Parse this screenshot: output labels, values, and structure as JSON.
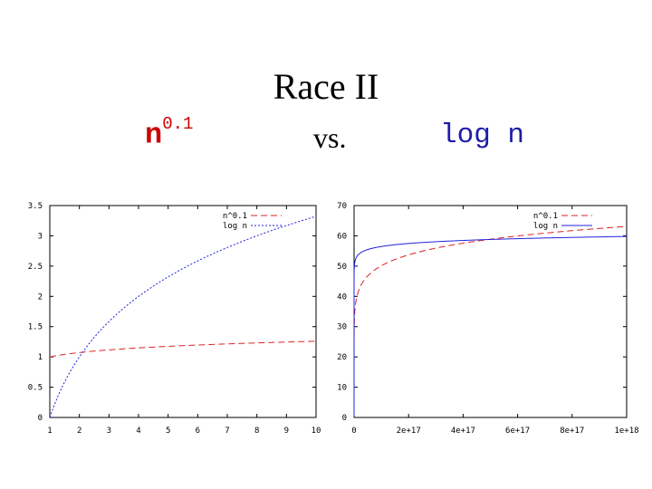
{
  "header": {
    "title": "Race II",
    "left_base": "n",
    "left_exponent": "0.1",
    "vs": "vs.",
    "right_label": "log n"
  },
  "colors": {
    "red_series": "#dd2222",
    "blue_series": "#2222dd"
  },
  "chart_data": [
    {
      "type": "line",
      "title": "",
      "xlabel": "",
      "ylabel": "",
      "xlim": [
        1,
        10
      ],
      "ylim": [
        0,
        3.5
      ],
      "x_ticks": [
        1,
        2,
        3,
        4,
        5,
        6,
        7,
        8,
        9,
        10
      ],
      "x_tick_labels": [
        "1",
        "2",
        "3",
        "4",
        "5",
        "6",
        "7",
        "8",
        "9",
        "10"
      ],
      "y_ticks": [
        0,
        0.5,
        1,
        1.5,
        2,
        2.5,
        3,
        3.5
      ],
      "y_tick_labels": [
        "0",
        "0.5",
        "1",
        "1.5",
        "2",
        "2.5",
        "3",
        "3.5"
      ],
      "legend_placement": "top-right",
      "series": [
        {
          "name": "n^0.1",
          "function": "power",
          "exponent": 0.1,
          "color": "red",
          "dash": "dashed"
        },
        {
          "name": "log n",
          "function": "log2",
          "color": "blue",
          "dash": "dotted"
        }
      ]
    },
    {
      "type": "line",
      "title": "",
      "xlabel": "",
      "ylabel": "",
      "xlim": [
        0,
        1e+18
      ],
      "ylim": [
        0,
        70
      ],
      "x_ticks": [
        0,
        2e+17,
        4e+17,
        6e+17,
        8e+17,
        1e+18
      ],
      "x_tick_labels": [
        "0",
        "2e+17",
        "4e+17",
        "6e+17",
        "8e+17",
        "1e+18"
      ],
      "y_ticks": [
        0,
        10,
        20,
        30,
        40,
        50,
        60,
        70
      ],
      "y_tick_labels": [
        "0",
        "10",
        "20",
        "30",
        "40",
        "50",
        "60",
        "70"
      ],
      "legend_placement": "top-right",
      "series": [
        {
          "name": "n^0.1",
          "function": "power",
          "exponent": 0.1,
          "color": "red",
          "dash": "dashed"
        },
        {
          "name": "log n",
          "function": "log2",
          "color": "blue",
          "dash": "solid"
        }
      ]
    }
  ]
}
